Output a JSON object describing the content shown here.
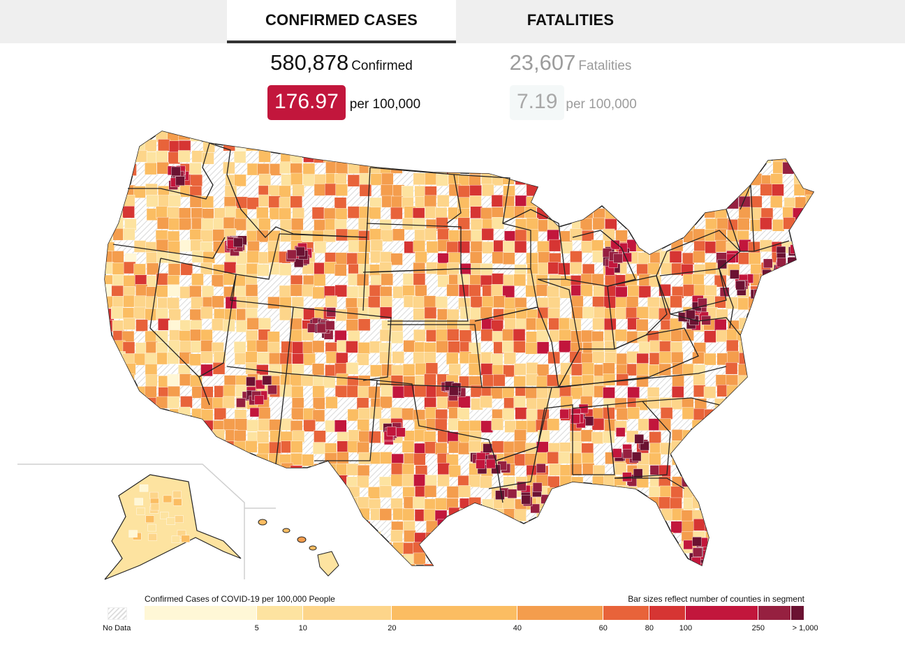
{
  "tabs": [
    {
      "label": "CONFIRMED CASES",
      "active": true
    },
    {
      "label": "FATALITIES",
      "active": false
    }
  ],
  "cases": {
    "total": "580,878",
    "total_unit": "Confirmed",
    "rate": "176.97",
    "rate_unit": "per 100,000"
  },
  "fatalities": {
    "total": "23,607",
    "total_unit": "Fatalities",
    "rate": "7.19",
    "rate_unit": "per 100,000"
  },
  "colors": {
    "accent": "#c2163c",
    "no_data": "#dddddd"
  },
  "legend": {
    "title": "Confirmed Cases of COVID-19 per 100,000 People",
    "note": "Bar sizes reflect number of counties in segment",
    "no_data_label": "No Data",
    "segments": [
      {
        "color": "#fff7d6",
        "share": 0.17,
        "end_label": "5"
      },
      {
        "color": "#fde3a0",
        "share": 0.07,
        "end_label": "10"
      },
      {
        "color": "#fdd58a",
        "share": 0.135,
        "end_label": "20"
      },
      {
        "color": "#fbbd62",
        "share": 0.19,
        "end_label": "40"
      },
      {
        "color": "#f49d4d",
        "share": 0.13,
        "end_label": "60"
      },
      {
        "color": "#e8633a",
        "share": 0.07,
        "end_label": "80"
      },
      {
        "color": "#d63533",
        "share": 0.055,
        "end_label": "100"
      },
      {
        "color": "#c2163c",
        "share": 0.11,
        "end_label": "250"
      },
      {
        "color": "#962040",
        "share": 0.05,
        "end_label": "> 1,000"
      },
      {
        "color": "#6b1232",
        "share": 0.02,
        "end_label": ""
      }
    ]
  },
  "map": {
    "regions": [
      "contiguous-us",
      "alaska",
      "hawaii"
    ],
    "states": [
      "WA",
      "OR",
      "CA",
      "NV",
      "ID",
      "MT",
      "WY",
      "UT",
      "AZ",
      "CO",
      "NM",
      "ND",
      "SD",
      "NE",
      "KS",
      "OK",
      "TX",
      "MN",
      "IA",
      "MO",
      "AR",
      "LA",
      "WI",
      "IL",
      "MI",
      "IN",
      "OH",
      "KY",
      "TN",
      "MS",
      "AL",
      "GA",
      "FL",
      "SC",
      "NC",
      "VA",
      "WV",
      "PA",
      "NY",
      "VT",
      "NH",
      "ME",
      "MA",
      "CT",
      "RI",
      "NJ",
      "DE",
      "MD"
    ]
  }
}
